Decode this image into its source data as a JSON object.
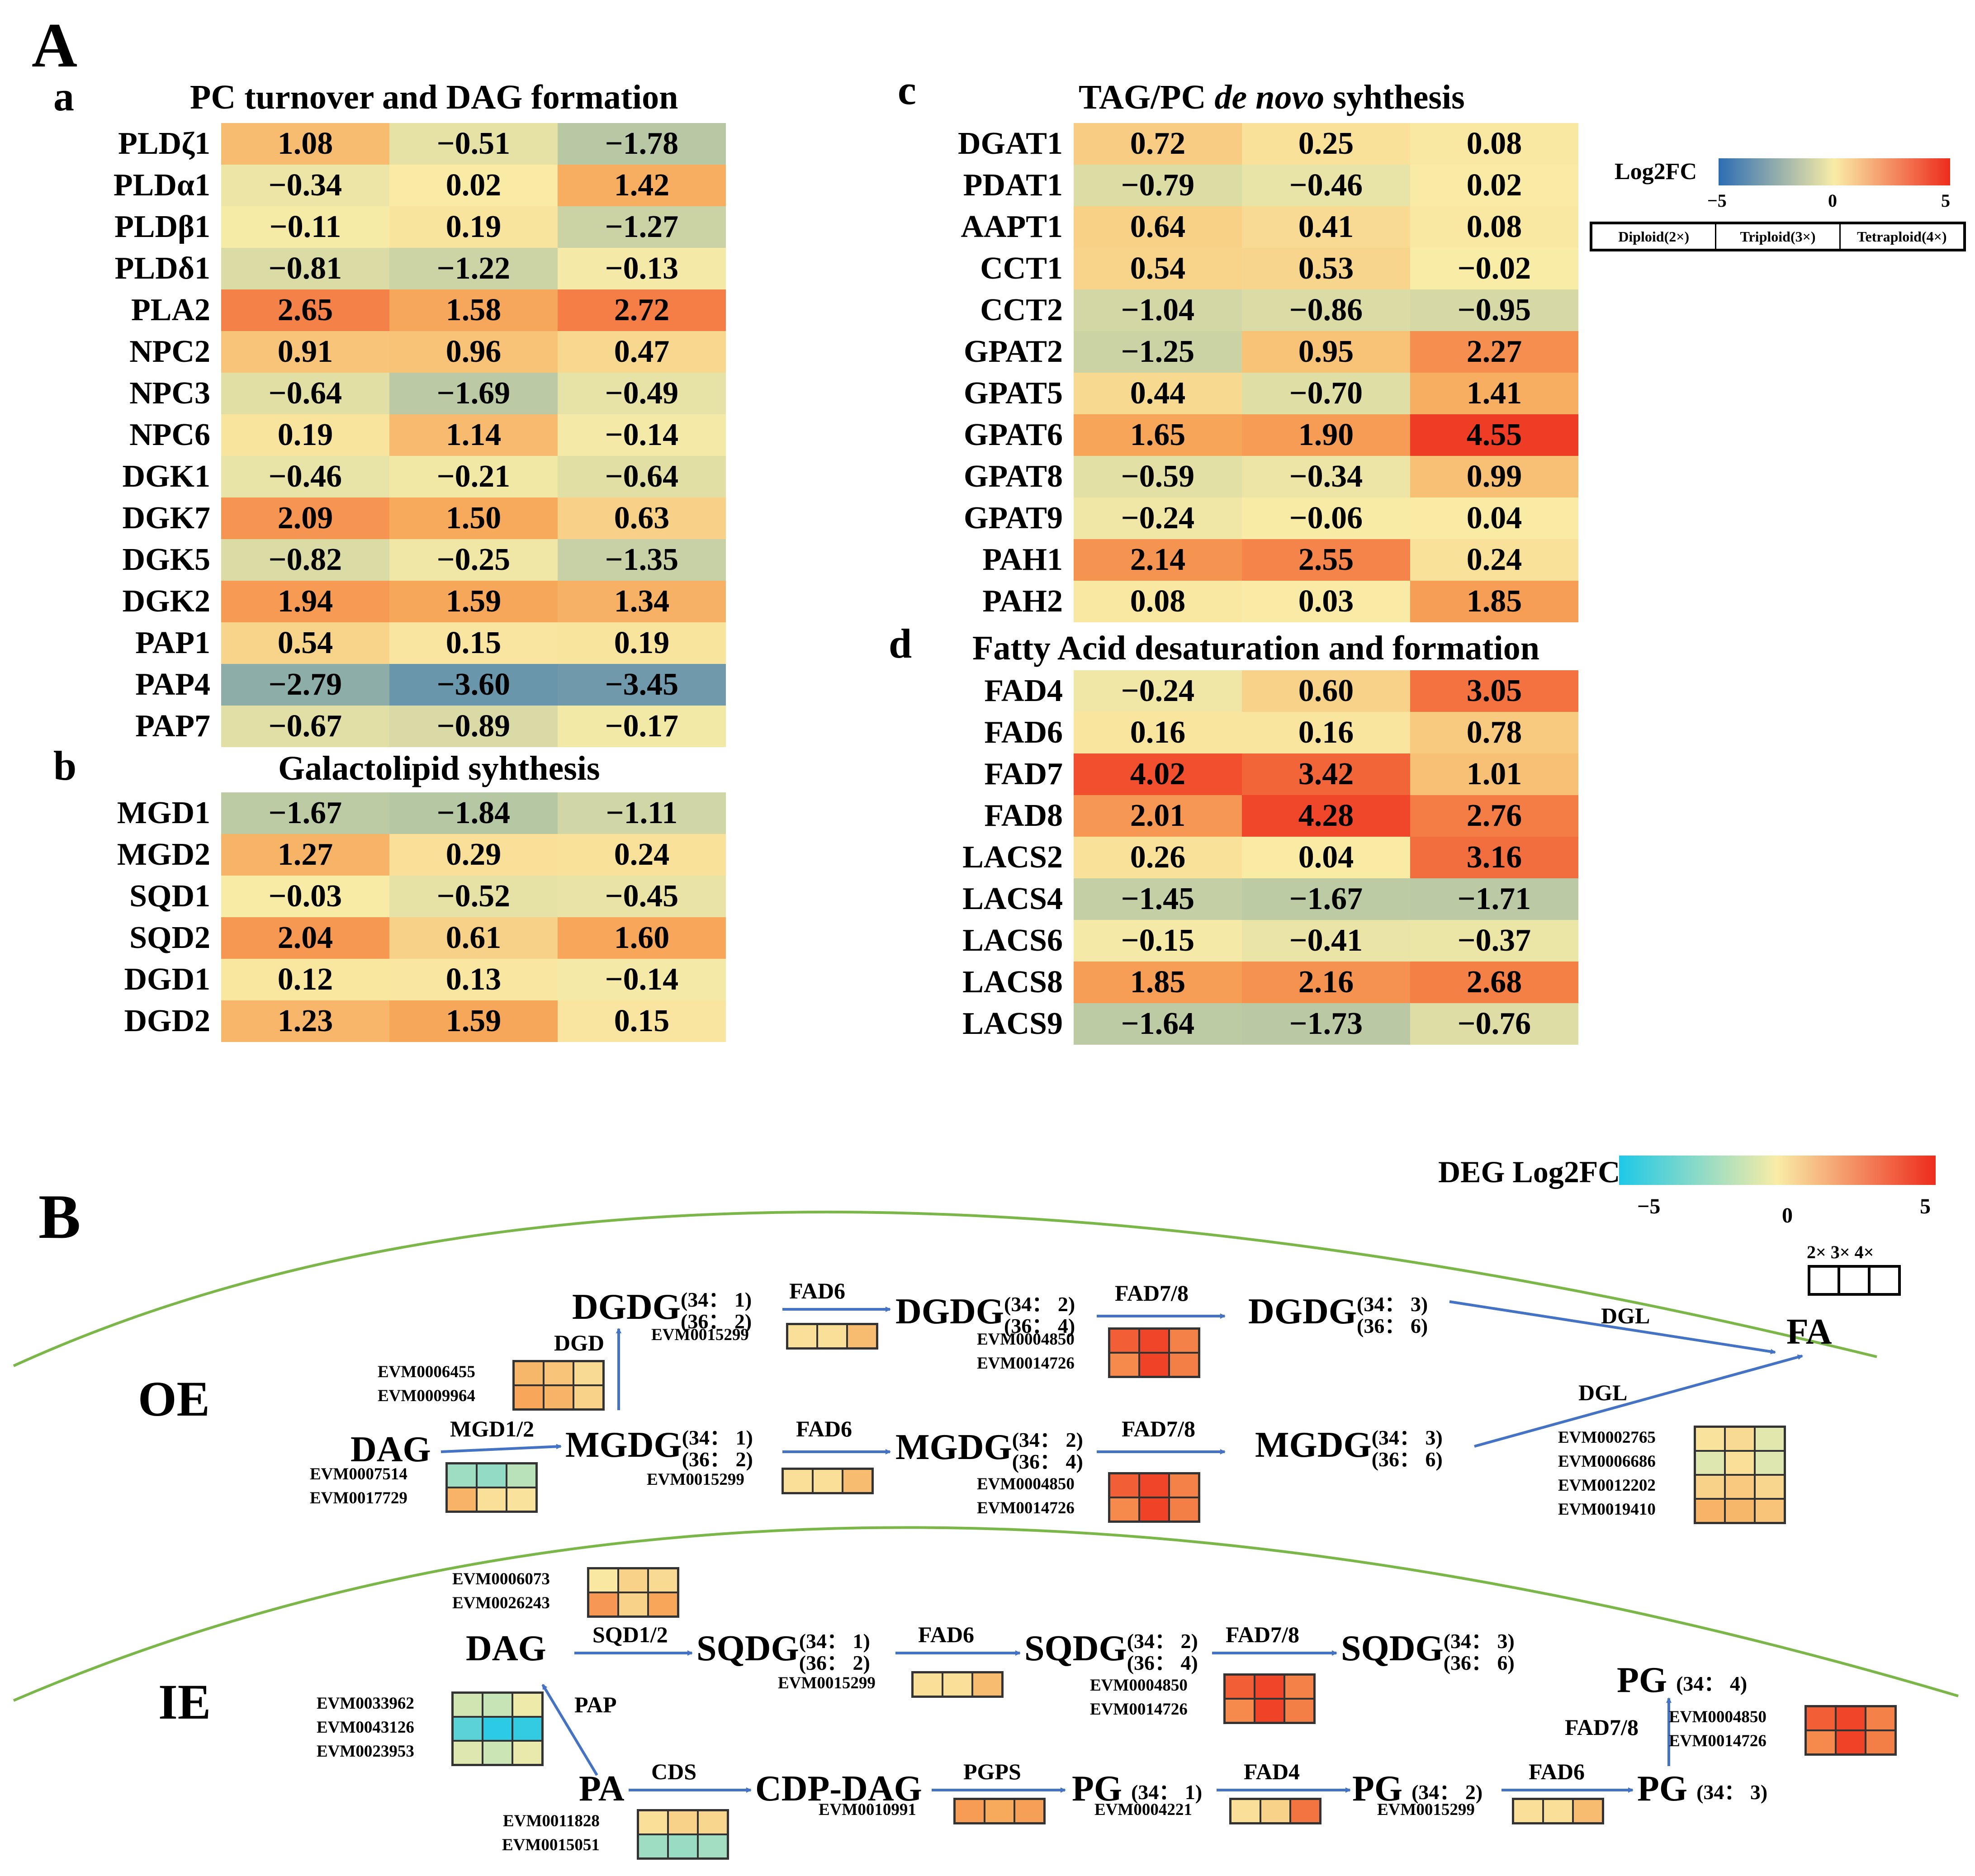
{
  "panelA": {
    "letter": "A",
    "heatmaps": [
      {
        "letter": "a",
        "title": "PC turnover and DAG formation",
        "genes": [
          "PLDζ1",
          "PLDα1",
          "PLDβ1",
          "PLDδ1",
          "PLA2",
          "NPC2",
          "NPC3",
          "NPC6",
          "DGK1",
          "DGK7",
          "DGK5",
          "DGK2",
          "PAP1",
          "PAP4",
          "PAP7"
        ],
        "values": [
          [
            1.08,
            -0.51,
            -1.78
          ],
          [
            -0.34,
            0.02,
            1.42
          ],
          [
            -0.11,
            0.19,
            -1.27
          ],
          [
            -0.81,
            -1.22,
            -0.13
          ],
          [
            2.65,
            1.58,
            2.72
          ],
          [
            0.91,
            0.96,
            0.47
          ],
          [
            -0.64,
            -1.69,
            -0.49
          ],
          [
            0.19,
            1.14,
            -0.14
          ],
          [
            -0.46,
            -0.21,
            -0.64
          ],
          [
            2.09,
            1.5,
            0.63
          ],
          [
            -0.82,
            -0.25,
            -1.35
          ],
          [
            1.94,
            1.59,
            1.34
          ],
          [
            0.54,
            0.15,
            0.19
          ],
          [
            -2.79,
            -3.6,
            -3.45
          ],
          [
            -0.67,
            -0.89,
            -0.17
          ]
        ]
      },
      {
        "letter": "b",
        "title": "Galactolipid syhthesis",
        "genes": [
          "MGD1",
          "MGD2",
          "SQD1",
          "SQD2",
          "DGD1",
          "DGD2"
        ],
        "values": [
          [
            -1.67,
            -1.84,
            -1.11
          ],
          [
            1.27,
            0.29,
            0.24
          ],
          [
            -0.03,
            -0.52,
            -0.45
          ],
          [
            2.04,
            0.61,
            1.6
          ],
          [
            0.12,
            0.13,
            -0.14
          ],
          [
            1.23,
            1.59,
            0.15
          ]
        ]
      },
      {
        "letter": "c",
        "title_parts": [
          "TAG/PC ",
          "de novo",
          " syhthesis"
        ],
        "genes": [
          "DGAT1",
          "PDAT1",
          "AAPT1",
          "CCT1",
          "CCT2",
          "GPAT2",
          "GPAT5",
          "GPAT6",
          "GPAT8",
          "GPAT9",
          "PAH1",
          "PAH2"
        ],
        "values": [
          [
            0.72,
            0.25,
            0.08
          ],
          [
            -0.79,
            -0.46,
            0.02
          ],
          [
            0.64,
            0.41,
            0.08
          ],
          [
            0.54,
            0.53,
            -0.02
          ],
          [
            -1.04,
            -0.86,
            -0.95
          ],
          [
            -1.25,
            0.95,
            2.27
          ],
          [
            0.44,
            -0.7,
            1.41
          ],
          [
            1.65,
            1.9,
            4.55
          ],
          [
            -0.59,
            -0.34,
            0.99
          ],
          [
            -0.24,
            -0.06,
            0.04
          ],
          [
            2.14,
            2.55,
            0.24
          ],
          [
            0.08,
            0.03,
            1.85
          ]
        ]
      },
      {
        "letter": "d",
        "title": "Fatty Acid desaturation and formation",
        "genes": [
          "FAD4",
          "FAD6",
          "FAD7",
          "FAD8",
          "LACS2",
          "LACS4",
          "LACS6",
          "LACS8",
          "LACS9"
        ],
        "values": [
          [
            -0.24,
            0.6,
            3.05
          ],
          [
            0.16,
            0.16,
            0.78
          ],
          [
            4.02,
            3.42,
            1.01
          ],
          [
            2.01,
            4.28,
            2.76
          ],
          [
            0.26,
            0.04,
            3.16
          ],
          [
            -1.45,
            -1.67,
            -1.71
          ],
          [
            -0.15,
            -0.41,
            -0.37
          ],
          [
            1.85,
            2.16,
            2.68
          ],
          [
            -1.64,
            -1.73,
            -0.76
          ]
        ]
      }
    ],
    "legend": {
      "label": "Log2FC",
      "ticks": [
        "−5",
        "0",
        "5"
      ],
      "ploidy": [
        "Diploid(2×)",
        "Triploid(3×)",
        "Tetraploid(4×)"
      ]
    }
  },
  "panelB": {
    "letter": "B",
    "legend": {
      "label": "DEG Log2FC",
      "ticks": [
        "−5",
        "0",
        "5"
      ],
      "ploidy": "2× 3× 4×"
    },
    "regions": {
      "outer": "OE",
      "inner": "IE"
    },
    "metabolites": {
      "dgdg": "DGDG",
      "mgdg": "MGDG",
      "sqdg": "SQDG",
      "dag": "DAG",
      "fa": "FA",
      "pa": "PA",
      "cdpdag": "CDP-DAG",
      "pg": "PG",
      "sp1": "(34： 1)",
      "sp1b": "(36： 2)",
      "sp2": "(34： 2)",
      "sp2b": "(36： 4)",
      "sp3": "(34： 3)",
      "sp3b": "(36： 6)",
      "pg1": "(34： 1)",
      "pg2": "(34： 2)",
      "pg3": "(34： 3)",
      "pg4": "(34： 4)"
    },
    "enzymes": {
      "fad6": "FAD6",
      "fad78": "FAD7/8",
      "fad4": "FAD4",
      "dgd": "DGD",
      "mgd": "MGD1/2",
      "dgl": "DGL",
      "sqd": "SQD1/2",
      "pap": "PAP",
      "cds": "CDS",
      "pgps": "PGPS"
    },
    "genes": {
      "g15299": "EVM0015299",
      "g4850": "EVM0004850",
      "g14726": "EVM0014726",
      "g6455": "EVM0006455",
      "g9964": "EVM0009964",
      "g7514": "EVM0007514",
      "g17729": "EVM0017729",
      "g2765": "EVM0002765",
      "g6686": "EVM0006686",
      "g12202": "EVM0012202",
      "g19410": "EVM0019410",
      "g6073": "EVM0006073",
      "g26243": "EVM0026243",
      "g33962": "EVM0033962",
      "g43126": "EVM0043126",
      "g23953": "EVM0023953",
      "g11828": "EVM0011828",
      "g15051": "EVM0015051",
      "g10991": "EVM0010991",
      "g4221": "EVM0004221"
    },
    "deg_values": {
      "dgdg_fad6": [
        [
          0.3,
          0.3,
          1.1
        ]
      ],
      "dgdg_fad78": [
        [
          3.6,
          4.3,
          2.6
        ],
        [
          2.4,
          4.4,
          2.7
        ]
      ],
      "dgd": [
        [
          1.2,
          0.9,
          0.4
        ],
        [
          1.6,
          1.3,
          0.6
        ]
      ],
      "mgdg_fad6": [
        [
          0.3,
          0.3,
          1.1
        ]
      ],
      "mgdg_fad78": [
        [
          3.6,
          4.3,
          2.6
        ],
        [
          2.4,
          4.4,
          2.7
        ]
      ],
      "mgd": [
        [
          -1.6,
          -1.8,
          -1.1
        ],
        [
          1.3,
          0.3,
          0.2
        ]
      ],
      "dgl": [
        [
          0.2,
          0.4,
          -0.4
        ],
        [
          -0.5,
          0.3,
          -0.5
        ],
        [
          0.6,
          0.8,
          0.5
        ],
        [
          1.3,
          1.2,
          0.9
        ]
      ],
      "sqd": [
        [
          0.1,
          0.6,
          0.4
        ],
        [
          2.0,
          0.6,
          1.6
        ]
      ],
      "sqdg_fad6": [
        [
          0.3,
          0.3,
          1.1
        ]
      ],
      "sqdg_fad78": [
        [
          3.6,
          4.3,
          2.6
        ],
        [
          2.4,
          4.4,
          2.7
        ]
      ],
      "pap": [
        [
          -0.7,
          -0.9,
          -0.2
        ],
        [
          -2.8,
          -3.6,
          -3.5
        ],
        [
          -0.5,
          -0.8,
          -0.3
        ]
      ],
      "cds": [
        [
          0.3,
          0.6,
          0.5
        ],
        [
          -1.6,
          -1.7,
          -1.5
        ]
      ],
      "pgps": [
        [
          1.9,
          1.5,
          1.8
        ]
      ],
      "pg_fad4": [
        [
          0.3,
          0.6,
          3.0
        ]
      ],
      "pg_fad6": [
        [
          0.3,
          0.3,
          1.1
        ]
      ],
      "pg_fad78": [
        [
          3.6,
          4.3,
          2.6
        ],
        [
          2.4,
          4.4,
          2.7
        ]
      ]
    }
  }
}
